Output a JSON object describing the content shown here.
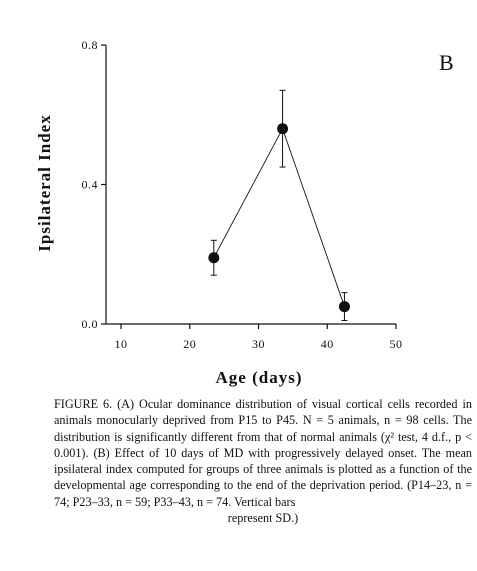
{
  "panel_label": "B",
  "chart_data": {
    "type": "scatter",
    "title": "",
    "xlabel": "Age (days)",
    "ylabel": "Ipsilateral Index",
    "xlim": [
      10,
      50
    ],
    "ylim": [
      0.0,
      0.8
    ],
    "x_ticks": [
      10,
      20,
      30,
      40,
      50
    ],
    "y_ticks": [
      0.0,
      0.4,
      0.8
    ],
    "y_tick_labels": [
      "0.0",
      "0.4",
      "0.8"
    ],
    "grid": false,
    "series": [
      {
        "x": [
          23.5,
          33.5,
          42.5
        ],
        "y": [
          0.19,
          0.56,
          0.05
        ],
        "error_sd": [
          0.05,
          0.11,
          0.04
        ],
        "connected": true,
        "marker": "filled-circle"
      }
    ]
  },
  "caption": {
    "body": "FIGURE 6. (A) Ocular dominance distribution of visual cortical cells recorded in animals monocularly deprived from P15 to P45. N = 5 animals, n = 98 cells. The distribution is significantly different from that of normal animals (χ² test, 4 d.f., p < 0.001). (B) Effect of 10 days of MD with progressively delayed onset. The mean ipsilateral index computed for groups of three animals is plotted as a function of the developmental age corresponding to the end of the deprivation period. (P14–23, n = 74; P23–33, n = 59; P33–43, n = 74. Vertical bars",
    "last_line": "represent SD.)"
  }
}
